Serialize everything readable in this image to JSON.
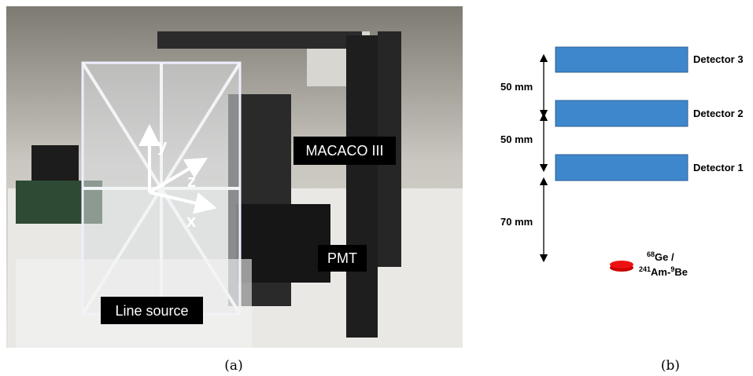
{
  "photo": {
    "labels": {
      "macaco": "MACACO III",
      "pmt": "PMT",
      "line_source": "Line source"
    },
    "axes": {
      "y": "y",
      "z": "z",
      "x": "x"
    },
    "caption": "(a)"
  },
  "diagram": {
    "detectors": [
      "Detector 3",
      "Detector 2",
      "Detector 1"
    ],
    "distances": [
      "50 mm",
      "50 mm",
      "70 mm"
    ],
    "source": {
      "ge_mass": "68",
      "ge": "Ge /",
      "am_mass": "241",
      "am": "Am-",
      "be_mass": "9",
      "be": "Be"
    },
    "caption": "(b)"
  }
}
